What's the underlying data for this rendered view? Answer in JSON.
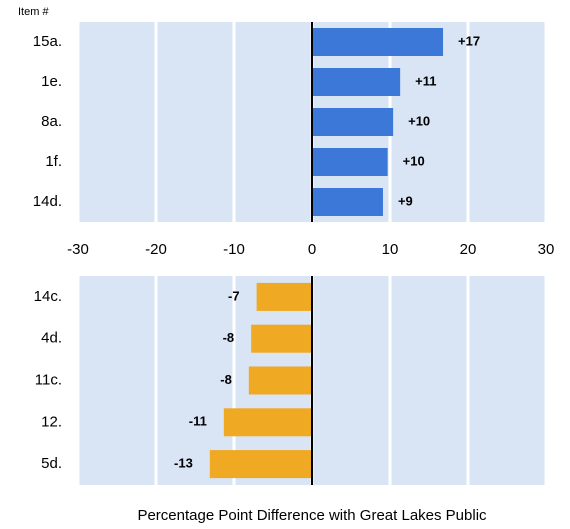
{
  "chart_data": [
    {
      "type": "bar",
      "orientation": "horizontal",
      "category_axis_title": "Item #",
      "categories": [
        "15a.",
        "1e.",
        "8a.",
        "1f.",
        "14d."
      ],
      "values": [
        16.8,
        11.3,
        10.4,
        9.7,
        9.1
      ],
      "value_labels": [
        "+17",
        "+11",
        "+10",
        "+10",
        "+9"
      ],
      "color": "#3c78d8",
      "xlim": [
        -30,
        30
      ],
      "xticks": [
        -30,
        -20,
        -10,
        0,
        10,
        20,
        30
      ],
      "grid": true
    },
    {
      "type": "bar",
      "orientation": "horizontal",
      "categories": [
        "14c.",
        "4d.",
        "11c.",
        "12.",
        "5d."
      ],
      "values": [
        -7.1,
        -7.8,
        -8.1,
        -11.3,
        -13.1
      ],
      "value_labels": [
        "-7",
        "-8",
        "-8",
        "-11",
        "-13"
      ],
      "color": "#f0a922",
      "xlim": [
        -30,
        30
      ],
      "grid": true,
      "x_label": "Percentage Point Difference with Great Lakes Public"
    }
  ]
}
